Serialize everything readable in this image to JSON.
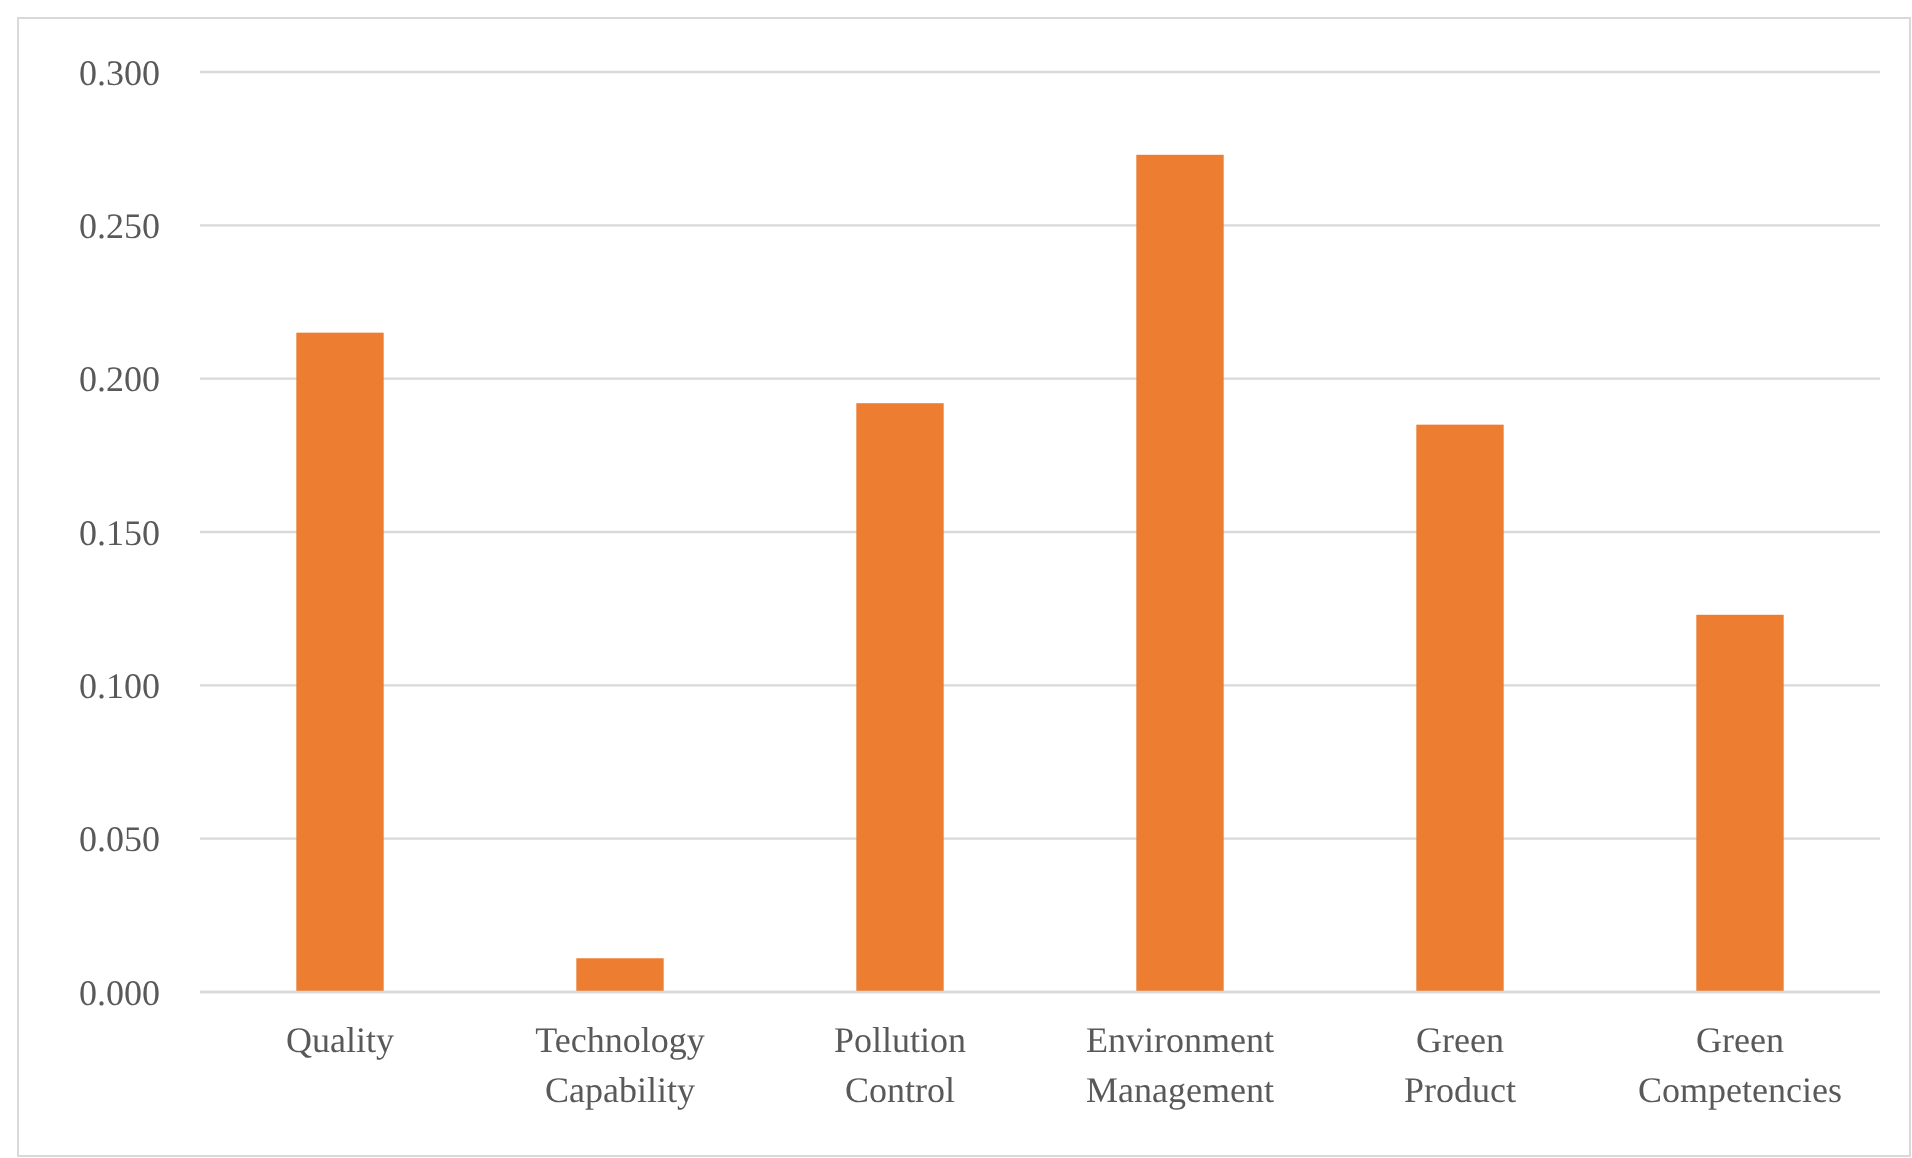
{
  "chart_data": {
    "type": "bar",
    "categories": [
      "Quality",
      "Technology Capability",
      "Pollution Control",
      "Environment Management",
      "Green Product",
      "Green Competencies"
    ],
    "values": [
      0.215,
      0.011,
      0.192,
      0.273,
      0.185,
      0.123
    ],
    "color": "#ed7d31",
    "ylim": [
      0,
      0.3
    ],
    "yticks": [
      {
        "value": 0,
        "label": "0.000"
      },
      {
        "value": 0.05,
        "label": "0.050"
      },
      {
        "value": 0.1,
        "label": "0.100"
      },
      {
        "value": 0.15,
        "label": "0.150"
      },
      {
        "value": 0.2,
        "label": "0.200"
      },
      {
        "value": 0.25,
        "label": "0.250"
      },
      {
        "value": 0.3,
        "label": "0.300"
      }
    ],
    "grid": "y"
  }
}
